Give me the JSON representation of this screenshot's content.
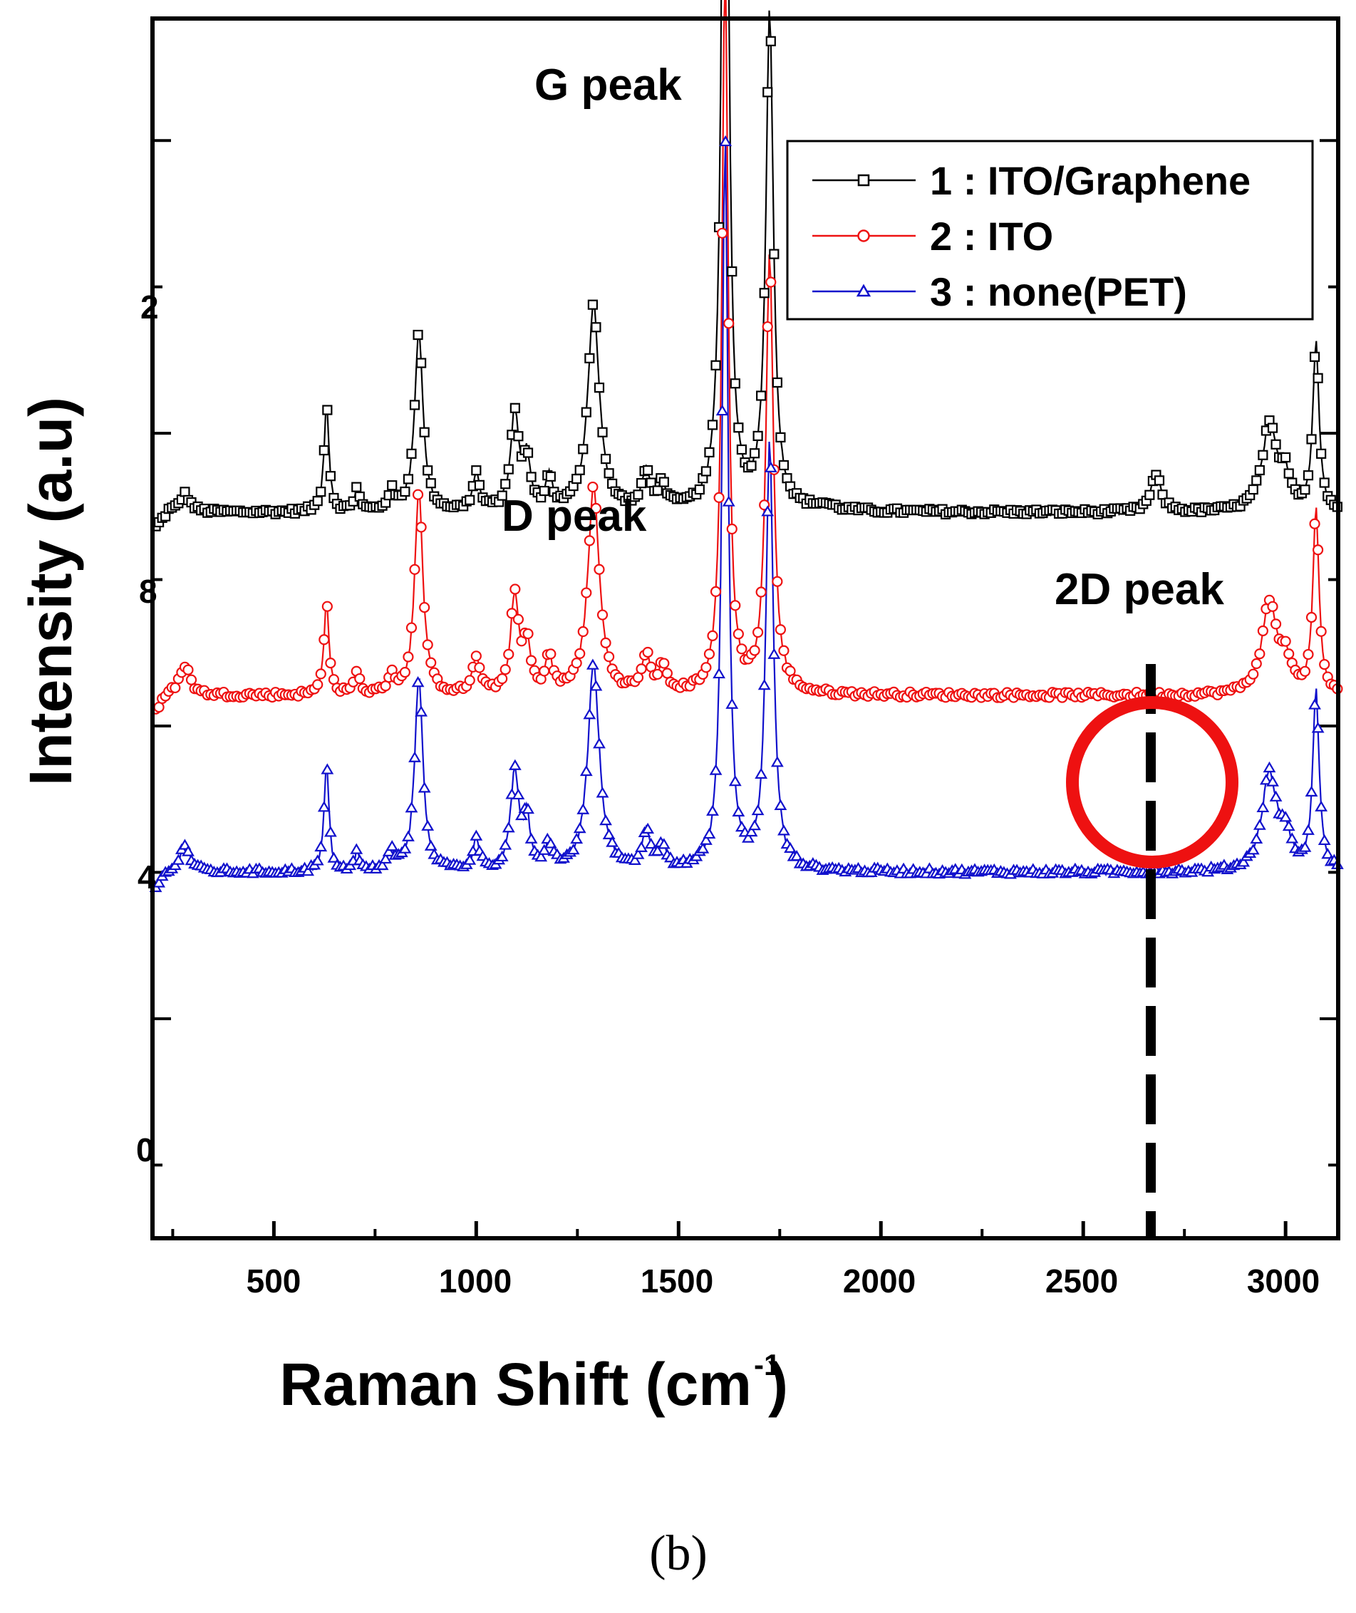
{
  "chart_data": {
    "type": "line",
    "title": "",
    "xlabel": "Raman Shift (cm",
    "xlabel_sup": "-1",
    "xlabel_close": ")",
    "ylabel": "Intensity (a.u)",
    "xlim": [
      200,
      3130
    ],
    "ylim": [
      0,
      100
    ],
    "xticks": [
      500,
      1000,
      1500,
      2000,
      2500,
      3000
    ],
    "xtick_labels": [
      "500",
      "1000",
      "1500",
      "2000",
      "2500",
      "3000"
    ],
    "partial_y_tick_labels": [
      "0",
      "4",
      "8",
      "2"
    ],
    "annotations": [
      "G peak",
      "D peak",
      "2D peak"
    ],
    "highlight": {
      "label": "2D peak",
      "x": 2680,
      "shape": "circle",
      "color": "#ee1111"
    },
    "caption": "(b)",
    "series": [
      {
        "name": "1 : ITO/Graphene",
        "color": "#000000",
        "marker": "square",
        "baseline": 59.5,
        "peaks": [
          [
            280,
            1.5,
            15
          ],
          [
            630,
            9,
            7
          ],
          [
            705,
            2,
            7
          ],
          [
            790,
            1.5,
            10
          ],
          [
            858,
            15,
            12
          ],
          [
            1000,
            3,
            10
          ],
          [
            1095,
            8,
            12
          ],
          [
            1125,
            4,
            10
          ],
          [
            1180,
            2.5,
            10
          ],
          [
            1290,
            17,
            17
          ],
          [
            1420,
            3,
            12
          ],
          [
            1460,
            2,
            12
          ],
          [
            1615,
            87,
            9
          ],
          [
            1725,
            41,
            11
          ],
          [
            1860,
            0.4,
            30
          ],
          [
            2680,
            3,
            15
          ],
          [
            2960,
            7,
            22
          ],
          [
            3000,
            2.5,
            15
          ],
          [
            3075,
            14,
            9
          ]
        ]
      },
      {
        "name": "2 : ITO",
        "color": "#ee1111",
        "marker": "circle",
        "baseline": 44.5,
        "peaks": [
          [
            280,
            2.5,
            15
          ],
          [
            630,
            8,
            7
          ],
          [
            705,
            2,
            7
          ],
          [
            790,
            1.5,
            10
          ],
          [
            858,
            17,
            12
          ],
          [
            1000,
            3,
            10
          ],
          [
            1095,
            8,
            12
          ],
          [
            1125,
            4,
            10
          ],
          [
            1180,
            3,
            10
          ],
          [
            1290,
            17,
            17
          ],
          [
            1420,
            3,
            12
          ],
          [
            1460,
            2,
            12
          ],
          [
            1615,
            60,
            9
          ],
          [
            1725,
            36,
            11
          ],
          [
            2960,
            7.5,
            22
          ],
          [
            3000,
            2.5,
            15
          ],
          [
            3075,
            15,
            9
          ]
        ]
      },
      {
        "name": "3 : none(PET)",
        "color": "#1111cc",
        "marker": "triangle",
        "baseline": 30,
        "peaks": [
          [
            280,
            2.2,
            15
          ],
          [
            630,
            9,
            7
          ],
          [
            705,
            1.5,
            7
          ],
          [
            790,
            1.5,
            10
          ],
          [
            858,
            16,
            12
          ],
          [
            1000,
            2.5,
            10
          ],
          [
            1095,
            8,
            12
          ],
          [
            1125,
            4,
            10
          ],
          [
            1180,
            2,
            10
          ],
          [
            1290,
            17,
            17
          ],
          [
            1420,
            3,
            12
          ],
          [
            1460,
            2,
            12
          ],
          [
            1615,
            60,
            9
          ],
          [
            1725,
            35,
            11
          ],
          [
            2960,
            8,
            22
          ],
          [
            3000,
            2.5,
            15
          ],
          [
            3075,
            15,
            9
          ]
        ]
      }
    ]
  }
}
